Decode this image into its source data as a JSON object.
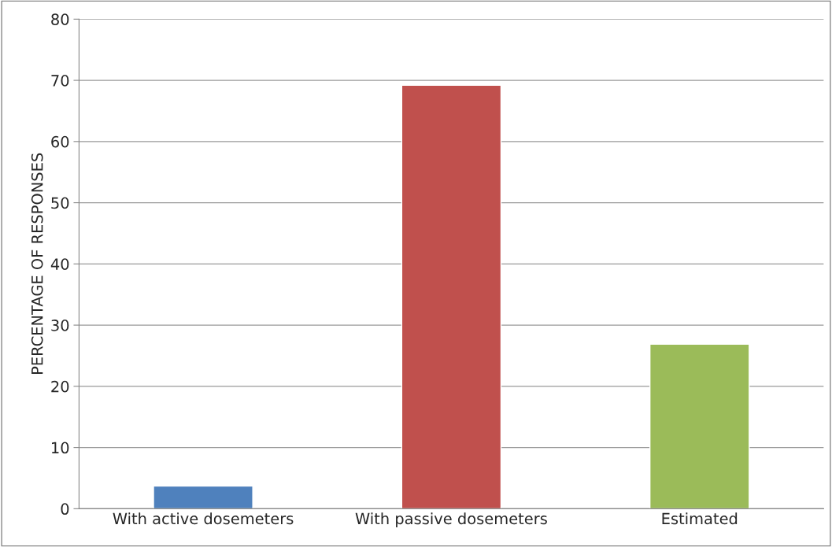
{
  "chart_data": {
    "type": "bar",
    "ylabel": "PERCENTAGE OF RESPONSES",
    "categories": [
      "With active dosemeters",
      "With passive dosemeters",
      "Estimated"
    ],
    "values": [
      3.7,
      69.2,
      26.9
    ],
    "colors": [
      "#4f81bd",
      "#c0504d",
      "#9bbb59"
    ],
    "ylim": [
      0,
      80
    ],
    "yticks": [
      0,
      10,
      20,
      30,
      40,
      50,
      60,
      70,
      80
    ],
    "grid": "y"
  }
}
